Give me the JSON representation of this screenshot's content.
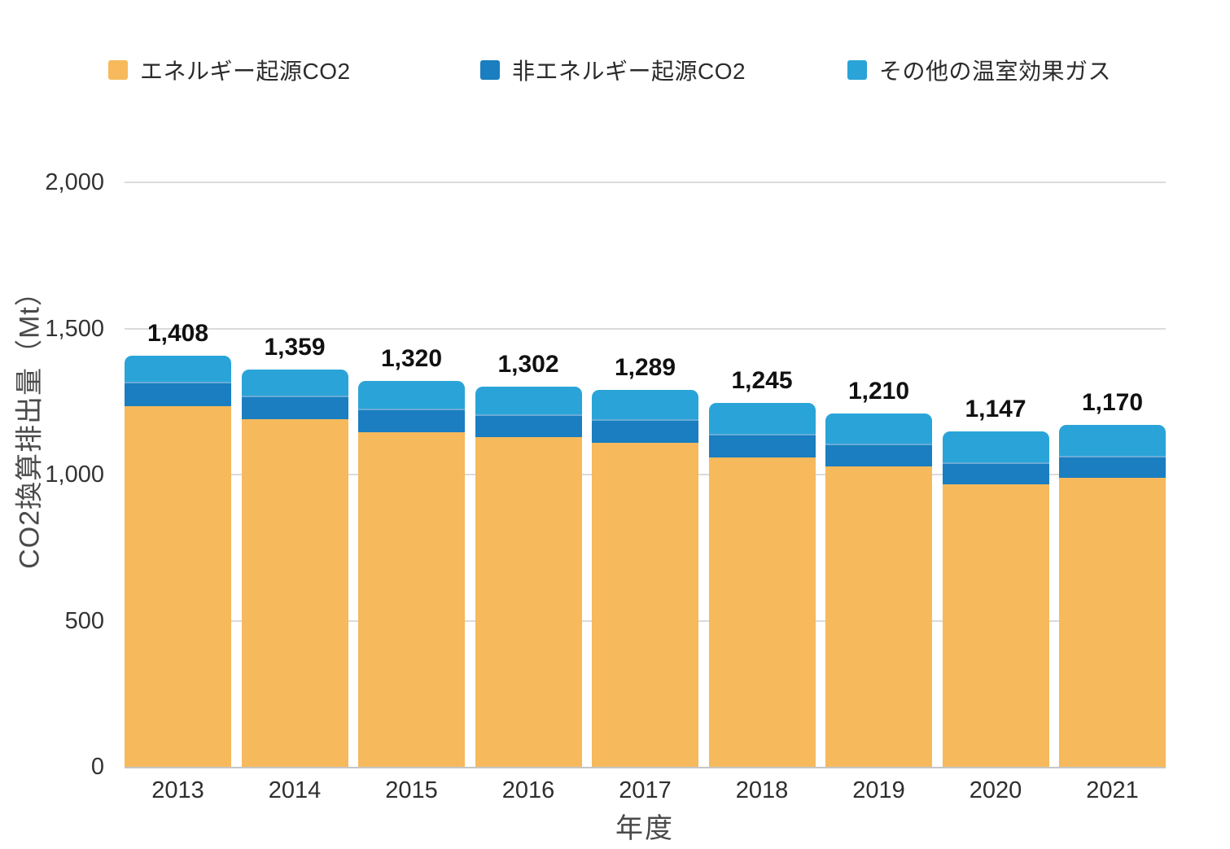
{
  "chart_data": {
    "type": "bar",
    "stacked": true,
    "title": "",
    "xlabel": "年度",
    "ylabel": "CO2換算排出量（Mt）",
    "categories": [
      "2013",
      "2014",
      "2015",
      "2016",
      "2017",
      "2018",
      "2019",
      "2020",
      "2021"
    ],
    "series": [
      {
        "name": "エネルギー起源CO2",
        "color": "#F6B95C",
        "values": [
          1235,
          1189,
          1146,
          1127,
          1110,
          1059,
          1027,
          967,
          988
        ]
      },
      {
        "name": "非エネルギー起源CO2",
        "color": "#1A7EC0",
        "values": [
          82,
          80,
          80,
          80,
          79,
          80,
          78,
          75,
          76
        ]
      },
      {
        "name": "その他の温室効果ガス",
        "color": "#2AA4D8",
        "values": [
          91,
          90,
          94,
          95,
          100,
          106,
          105,
          105,
          106
        ]
      }
    ],
    "totals": [
      "1,408",
      "1,359",
      "1,320",
      "1,302",
      "1,289",
      "1,245",
      "1,210",
      "1,147",
      "1,170"
    ],
    "ylim": [
      0,
      2000
    ],
    "yticks": [
      {
        "value": 0,
        "label": "0"
      },
      {
        "value": 500,
        "label": "500"
      },
      {
        "value": 1000,
        "label": "1,000"
      },
      {
        "value": 1500,
        "label": "1,500"
      },
      {
        "value": 2000,
        "label": "2,000"
      }
    ],
    "grid": true,
    "legend_position": "top"
  },
  "colors": {
    "gridline": "#DBDBDB",
    "axis_line": "#C6C6C6",
    "tick_text": "#333333",
    "total_label_text": "#111111",
    "axis_title_text": "#4A4A4A"
  }
}
